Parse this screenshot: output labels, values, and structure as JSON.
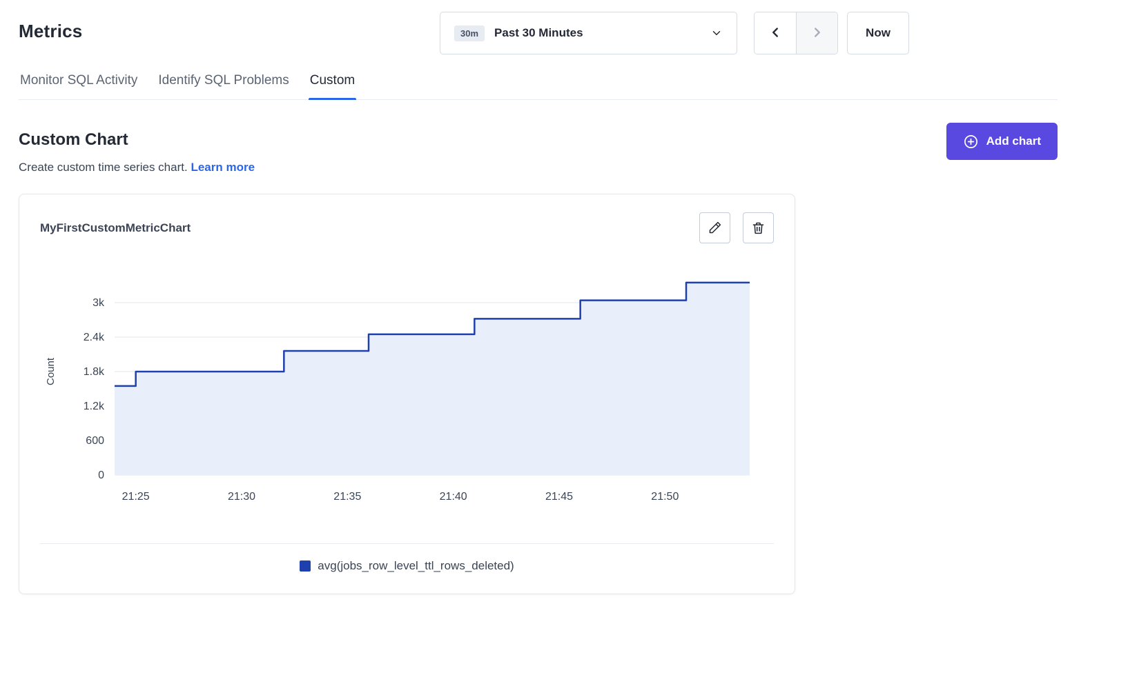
{
  "page": {
    "title": "Metrics"
  },
  "time_picker": {
    "badge": "30m",
    "label": "Past 30 Minutes"
  },
  "toolbar": {
    "now_label": "Now"
  },
  "tabs": [
    {
      "label": "Monitor SQL Activity",
      "active": false
    },
    {
      "label": "Identify SQL Problems",
      "active": false
    },
    {
      "label": "Custom",
      "active": true
    }
  ],
  "section": {
    "title": "Custom Chart",
    "description": "Create custom time series chart.",
    "link_label": "Learn more",
    "add_chart_label": "Add chart"
  },
  "colors": {
    "accent_purple": "#5a49e0",
    "link_blue": "#2a66e8",
    "series_blue": "#1e3fae",
    "series_fill": "#e9eefb",
    "grid_line": "#e2e6ec",
    "axis_text": "#394455"
  },
  "chart_data": {
    "type": "line",
    "line_style": "step-after",
    "title": "MyFirstCustomMetricChart",
    "xlabel": "",
    "ylabel": "Count",
    "ylim": [
      0,
      3600
    ],
    "x_domain": [
      "21:24",
      "21:54"
    ],
    "grid": true,
    "legend_position": "bottom",
    "yticks": [
      {
        "value": 0,
        "label": "0"
      },
      {
        "value": 600,
        "label": "600"
      },
      {
        "value": 1200,
        "label": "1.2k"
      },
      {
        "value": 1800,
        "label": "1.8k"
      },
      {
        "value": 2400,
        "label": "2.4k"
      },
      {
        "value": 3000,
        "label": "3k"
      }
    ],
    "xticks": [
      "21:25",
      "21:30",
      "21:35",
      "21:40",
      "21:45",
      "21:50"
    ],
    "series": [
      {
        "name": "avg(jobs_row_level_ttl_rows_deleted)",
        "color": "#1e3fae",
        "points": [
          {
            "x": "21:24",
            "y": 1550
          },
          {
            "x": "21:25",
            "y": 1800
          },
          {
            "x": "21:32",
            "y": 2160
          },
          {
            "x": "21:36",
            "y": 2450
          },
          {
            "x": "21:41",
            "y": 2720
          },
          {
            "x": "21:46",
            "y": 3040
          },
          {
            "x": "21:51",
            "y": 3350
          },
          {
            "x": "21:54",
            "y": 3350
          }
        ]
      }
    ]
  }
}
